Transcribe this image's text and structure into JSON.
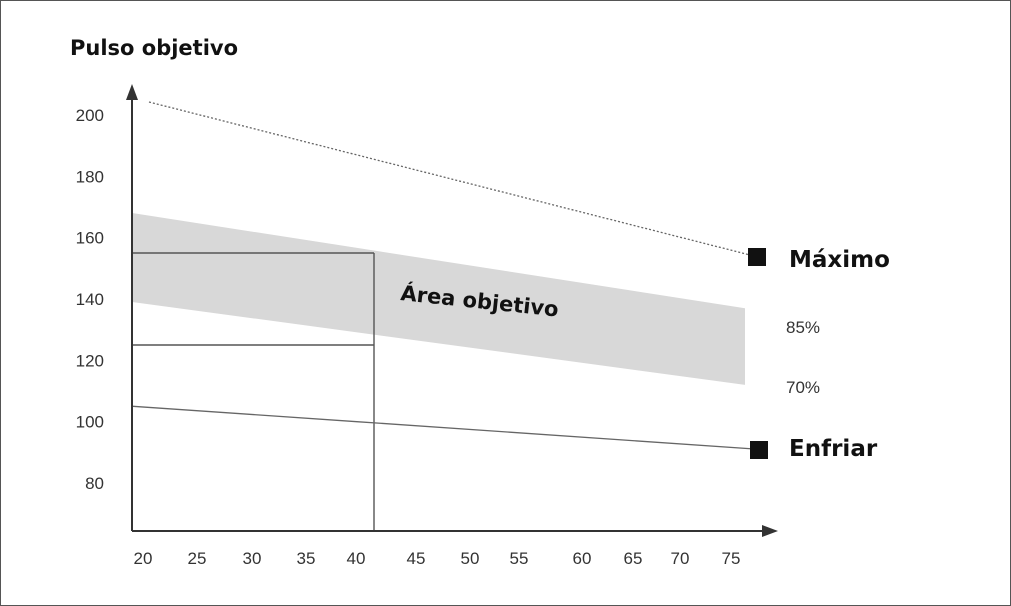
{
  "chart_data": {
    "type": "line",
    "title": "",
    "ylabel": "Pulso objetivo",
    "xlabel": "",
    "x_ticks": [
      20,
      25,
      30,
      35,
      40,
      45,
      50,
      55,
      60,
      65,
      70,
      75
    ],
    "y_ticks": [
      80,
      100,
      120,
      140,
      160,
      180,
      200
    ],
    "ylim": [
      80,
      200
    ],
    "xlim": [
      20,
      75
    ],
    "series": [
      {
        "name": "Máximo",
        "style": "dotted",
        "x": [
          20,
          75
        ],
        "y": [
          200,
          155
        ],
        "marker": "square"
      },
      {
        "name": "Enfriar",
        "style": "solid",
        "x": [
          20,
          40,
          75
        ],
        "y": [
          105,
          100,
          91
        ],
        "marker": "square"
      }
    ],
    "band": {
      "name": "Área objetivo",
      "upper_label": "85%",
      "lower_label": "70%",
      "x": [
        20,
        75
      ],
      "upper": [
        168,
        137
      ],
      "lower": [
        139,
        112
      ]
    },
    "guide": {
      "x": 40,
      "y_upper": 155,
      "y_lower": 125
    },
    "colors": {
      "band": "#d8d8d8",
      "line": "#555555",
      "axis": "#333333"
    }
  }
}
